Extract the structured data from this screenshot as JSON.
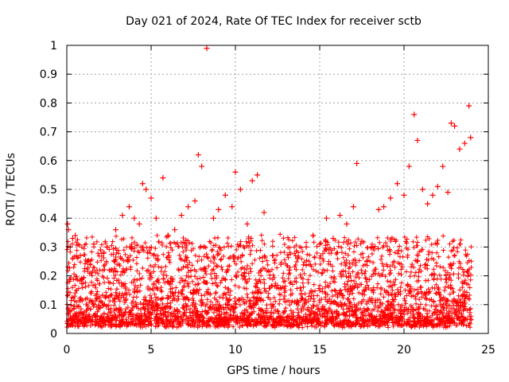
{
  "chart_data": {
    "type": "scatter",
    "title": "Day 021 of 2024, Rate Of TEC Index for receiver sctb",
    "xlabel": "GPS time / hours",
    "ylabel": "ROTI / TECUs",
    "xlim": [
      0,
      25
    ],
    "ylim": [
      0,
      1
    ],
    "xticks": [
      0,
      5,
      10,
      15,
      20,
      25
    ],
    "yticks": [
      0,
      0.1,
      0.2,
      0.3,
      0.4,
      0.5,
      0.6,
      0.7,
      0.8,
      0.9,
      1
    ],
    "xtick_labels": [
      "0",
      "5",
      "10",
      "15",
      "20",
      "25"
    ],
    "ytick_labels": [
      "0",
      "0.1",
      "0.2",
      "0.3",
      "0.4",
      "0.5",
      "0.6",
      "0.7",
      "0.8",
      "0.9",
      "1"
    ],
    "grid": true,
    "marker": "+",
    "series": [
      {
        "name": "ROTI",
        "color": "#ff0000",
        "x": [
          0.05,
          0.1,
          0.2,
          0.35,
          0.5,
          0.8,
          1.2,
          1.6,
          2.0,
          2.4,
          2.9,
          3.3,
          3.7,
          4.0,
          4.3,
          4.5,
          4.7,
          5.0,
          5.3,
          5.7,
          6.0,
          6.4,
          6.8,
          7.2,
          7.6,
          7.8,
          8.0,
          8.3,
          8.7,
          9.0,
          9.4,
          9.8,
          10.0,
          10.3,
          10.7,
          11.0,
          11.3,
          11.7,
          12.2,
          12.7,
          13.2,
          13.7,
          14.2,
          14.6,
          15.0,
          15.4,
          15.8,
          16.2,
          16.6,
          17.0,
          17.2,
          17.5,
          17.8,
          18.1,
          18.5,
          18.8,
          19.2,
          19.6,
          20.0,
          20.3,
          20.6,
          20.8,
          21.1,
          21.4,
          21.7,
          22.0,
          22.3,
          22.6,
          22.8,
          23.0,
          23.3,
          23.6,
          23.85,
          23.95
        ],
        "y": [
          0.38,
          0.36,
          0.3,
          0.33,
          0.34,
          0.27,
          0.25,
          0.31,
          0.29,
          0.3,
          0.36,
          0.41,
          0.44,
          0.4,
          0.38,
          0.52,
          0.5,
          0.47,
          0.4,
          0.54,
          0.34,
          0.36,
          0.41,
          0.44,
          0.46,
          0.62,
          0.58,
          0.99,
          0.4,
          0.43,
          0.48,
          0.44,
          0.56,
          0.5,
          0.38,
          0.53,
          0.55,
          0.42,
          0.27,
          0.24,
          0.22,
          0.26,
          0.3,
          0.34,
          0.31,
          0.4,
          0.33,
          0.41,
          0.38,
          0.44,
          0.59,
          0.32,
          0.25,
          0.3,
          0.43,
          0.44,
          0.47,
          0.52,
          0.48,
          0.58,
          0.76,
          0.67,
          0.5,
          0.45,
          0.48,
          0.51,
          0.58,
          0.49,
          0.73,
          0.72,
          0.64,
          0.66,
          0.79,
          0.68
        ]
      }
    ]
  }
}
